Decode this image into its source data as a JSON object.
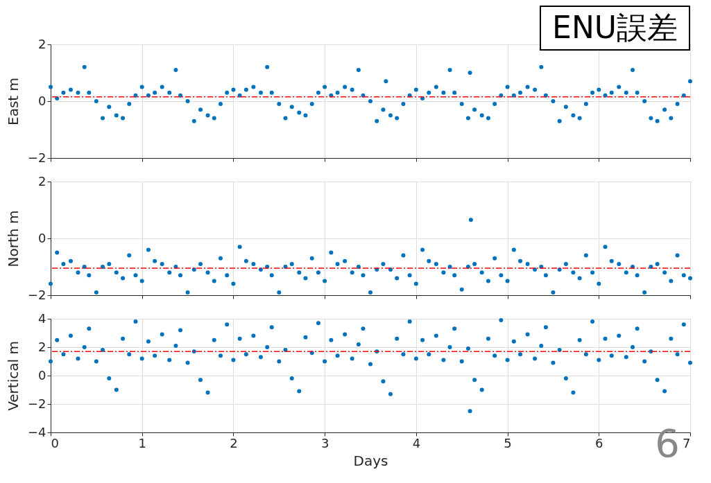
{
  "chart_data": [
    {
      "type": "scatter",
      "title": "ENU誤差",
      "ylabel": "East m",
      "xlim": [
        0,
        7
      ],
      "xticks": [
        0,
        1,
        2,
        3,
        4,
        5,
        6,
        7
      ],
      "ylim": [
        -2,
        2
      ],
      "yticks": [
        -2,
        0,
        2
      ],
      "grid": true,
      "marker": "circle",
      "tick_labels": "y",
      "x": [
        0,
        0.07,
        0.14,
        0.22,
        0.3,
        0.37,
        0.42,
        0.5,
        0.57,
        0.64,
        0.72,
        0.79,
        0.86,
        0.93,
        1,
        1.07,
        1.14,
        1.22,
        1.3,
        1.37,
        1.42,
        1.5,
        1.57,
        1.64,
        1.72,
        1.79,
        1.86,
        1.93,
        2,
        2.07,
        2.14,
        2.22,
        2.3,
        2.37,
        2.42,
        2.5,
        2.57,
        2.64,
        2.72,
        2.79,
        2.86,
        2.93,
        3,
        3.07,
        3.14,
        3.22,
        3.3,
        3.37,
        3.42,
        3.5,
        3.57,
        3.64,
        3.72,
        3.79,
        3.86,
        3.93,
        4,
        4.07,
        4.14,
        4.22,
        4.3,
        4.37,
        4.42,
        4.5,
        4.57,
        4.64,
        4.72,
        4.79,
        4.86,
        4.93,
        5,
        5.07,
        5.14,
        5.22,
        5.3,
        5.37,
        5.42,
        5.5,
        5.57,
        5.64,
        5.72,
        5.79,
        5.86,
        5.93,
        6,
        6.07,
        6.14,
        6.22,
        6.3,
        6.37,
        6.42,
        6.5,
        6.57,
        6.64,
        6.72,
        6.79,
        6.86,
        6.93,
        7,
        3.67,
        4.59
      ],
      "series": [
        {
          "color": "#0072bd",
          "values": [
            0.5,
            0.1,
            0.3,
            0.4,
            0.3,
            1.2,
            0.3,
            0.0,
            -0.6,
            -0.2,
            -0.5,
            -0.6,
            -0.1,
            0.2,
            0.5,
            0.2,
            0.3,
            0.5,
            0.3,
            1.1,
            0.2,
            0.0,
            -0.7,
            -0.3,
            -0.5,
            -0.6,
            -0.1,
            0.3,
            0.4,
            0.2,
            0.4,
            0.5,
            0.3,
            1.2,
            0.3,
            -0.1,
            -0.6,
            -0.2,
            -0.4,
            -0.5,
            -0.1,
            0.3,
            0.5,
            0.2,
            0.3,
            0.5,
            0.4,
            1.1,
            0.2,
            0.0,
            -0.7,
            -0.3,
            -0.5,
            -0.6,
            -0.1,
            0.2,
            0.4,
            0.1,
            0.3,
            0.5,
            0.3,
            1.1,
            0.3,
            -0.1,
            -0.6,
            -0.3,
            -0.5,
            -0.6,
            -0.1,
            0.2,
            0.5,
            0.2,
            0.3,
            0.5,
            0.4,
            1.2,
            0.2,
            0.0,
            -0.7,
            -0.2,
            -0.5,
            -0.6,
            -0.1,
            0.3,
            0.4,
            0.2,
            0.3,
            0.5,
            0.3,
            1.1,
            0.3,
            0.0,
            -0.6,
            -0.7,
            -0.3,
            -0.6,
            -0.1,
            0.2,
            0.7,
            0.7,
            1.0
          ]
        }
      ],
      "ref_lines": [
        {
          "axis": "y",
          "value": 0.15,
          "color": "#ff0000",
          "line_style": "dashed"
        }
      ]
    },
    {
      "type": "scatter",
      "ylabel": "North m",
      "xlim": [
        0,
        7
      ],
      "xticks": [
        0,
        1,
        2,
        3,
        4,
        5,
        6,
        7
      ],
      "ylim": [
        -2,
        2
      ],
      "yticks": [
        -2,
        0,
        2
      ],
      "grid": true,
      "marker": "circle",
      "tick_labels": "y",
      "x": [
        0,
        0.07,
        0.14,
        0.22,
        0.3,
        0.37,
        0.42,
        0.5,
        0.57,
        0.64,
        0.72,
        0.79,
        0.86,
        0.93,
        1,
        1.07,
        1.14,
        1.22,
        1.3,
        1.37,
        1.42,
        1.5,
        1.57,
        1.64,
        1.72,
        1.79,
        1.86,
        1.93,
        2,
        2.07,
        2.14,
        2.22,
        2.3,
        2.37,
        2.42,
        2.5,
        2.57,
        2.64,
        2.72,
        2.79,
        2.86,
        2.93,
        3,
        3.07,
        3.14,
        3.22,
        3.3,
        3.37,
        3.42,
        3.5,
        3.57,
        3.64,
        3.72,
        3.79,
        3.86,
        3.93,
        4,
        4.07,
        4.14,
        4.22,
        4.3,
        4.37,
        4.42,
        4.5,
        4.57,
        4.64,
        4.72,
        4.79,
        4.86,
        4.93,
        5,
        5.07,
        5.14,
        5.22,
        5.3,
        5.37,
        5.42,
        5.5,
        5.57,
        5.64,
        5.72,
        5.79,
        5.86,
        5.93,
        6,
        6.07,
        6.14,
        6.22,
        6.3,
        6.37,
        6.42,
        6.5,
        6.57,
        6.64,
        6.72,
        6.79,
        6.86,
        6.93,
        7,
        4.6
      ],
      "series": [
        {
          "color": "#0072bd",
          "values": [
            -1.6,
            -0.5,
            -0.9,
            -0.8,
            -1.2,
            -1.0,
            -1.3,
            -1.9,
            -1.0,
            -0.9,
            -1.2,
            -1.4,
            -0.6,
            -1.3,
            -1.5,
            -0.4,
            -0.8,
            -0.9,
            -1.2,
            -1.0,
            -1.3,
            -1.9,
            -1.1,
            -0.9,
            -1.2,
            -1.5,
            -0.7,
            -1.3,
            -1.6,
            -0.3,
            -0.8,
            -0.9,
            -1.1,
            -1.0,
            -1.3,
            -1.9,
            -1.0,
            -0.9,
            -1.2,
            -1.4,
            -0.7,
            -1.2,
            -1.5,
            -0.5,
            -0.9,
            -0.8,
            -1.2,
            -1.0,
            -1.3,
            -1.9,
            -1.1,
            -0.9,
            -1.1,
            -1.4,
            -0.6,
            -1.3,
            -1.6,
            -0.4,
            -0.8,
            -0.9,
            -1.2,
            -1.0,
            -1.3,
            -1.8,
            -1.0,
            -0.9,
            -1.2,
            -1.5,
            -0.7,
            -1.3,
            -1.5,
            -0.4,
            -0.8,
            -0.9,
            -1.1,
            -1.0,
            -1.3,
            -1.9,
            -1.1,
            -0.9,
            -1.2,
            -1.4,
            -0.6,
            -1.2,
            -1.6,
            -0.3,
            -0.8,
            -0.9,
            -1.2,
            -1.0,
            -1.3,
            -1.9,
            -1.0,
            -0.9,
            -1.2,
            -1.5,
            -0.6,
            -1.3,
            -1.4,
            0.65
          ]
        }
      ],
      "ref_lines": [
        {
          "axis": "y",
          "value": -1.05,
          "color": "#ff0000",
          "line_style": "dashed"
        }
      ]
    },
    {
      "type": "scatter",
      "ylabel": "Vertical m",
      "xlabel": "Days",
      "xlim": [
        0,
        7
      ],
      "xticks": [
        0,
        1,
        2,
        3,
        4,
        5,
        6,
        7
      ],
      "ylim": [
        -4,
        4
      ],
      "yticks": [
        -4,
        -2,
        0,
        2,
        4
      ],
      "grid": true,
      "marker": "circle",
      "annotations": [
        "6"
      ],
      "x": [
        0,
        0.07,
        0.14,
        0.22,
        0.3,
        0.37,
        0.42,
        0.5,
        0.57,
        0.64,
        0.72,
        0.79,
        0.86,
        0.93,
        1,
        1.07,
        1.14,
        1.22,
        1.3,
        1.37,
        1.42,
        1.5,
        1.57,
        1.64,
        1.72,
        1.79,
        1.86,
        1.93,
        2,
        2.07,
        2.14,
        2.22,
        2.3,
        2.37,
        2.42,
        2.5,
        2.57,
        2.64,
        2.72,
        2.79,
        2.86,
        2.93,
        3,
        3.07,
        3.14,
        3.22,
        3.3,
        3.37,
        3.42,
        3.5,
        3.57,
        3.64,
        3.72,
        3.79,
        3.86,
        3.93,
        4,
        4.07,
        4.14,
        4.22,
        4.3,
        4.37,
        4.42,
        4.5,
        4.57,
        4.64,
        4.72,
        4.79,
        4.86,
        4.93,
        5,
        5.07,
        5.14,
        5.22,
        5.3,
        5.37,
        5.42,
        5.5,
        5.57,
        5.64,
        5.72,
        5.79,
        5.86,
        5.93,
        6,
        6.07,
        6.14,
        6.22,
        6.3,
        6.37,
        6.42,
        6.5,
        6.57,
        6.64,
        6.72,
        6.79,
        6.86,
        6.93,
        7,
        4.59
      ],
      "series": [
        {
          "color": "#0072bd",
          "values": [
            1.0,
            2.5,
            1.5,
            2.8,
            1.2,
            2.0,
            3.3,
            1.0,
            1.8,
            -0.2,
            -1.0,
            2.6,
            1.5,
            3.8,
            1.2,
            2.4,
            1.4,
            2.9,
            1.1,
            2.1,
            3.2,
            0.9,
            1.7,
            -0.3,
            -1.2,
            2.5,
            1.4,
            3.6,
            1.1,
            2.6,
            1.5,
            2.8,
            1.3,
            2.0,
            3.4,
            1.0,
            1.8,
            -0.2,
            -1.1,
            2.7,
            1.6,
            3.7,
            1.0,
            2.5,
            1.4,
            2.9,
            1.2,
            2.2,
            3.3,
            0.8,
            1.7,
            -0.4,
            -1.3,
            2.6,
            1.5,
            3.8,
            1.2,
            2.5,
            1.5,
            2.8,
            1.1,
            2.0,
            3.3,
            1.0,
            1.9,
            -0.3,
            -1.0,
            2.6,
            1.4,
            3.9,
            1.1,
            2.4,
            1.5,
            2.9,
            1.2,
            2.1,
            3.4,
            0.9,
            1.8,
            -0.2,
            -1.2,
            2.5,
            1.5,
            3.8,
            1.1,
            2.6,
            1.4,
            2.8,
            1.3,
            2.0,
            3.3,
            1.0,
            1.7,
            -0.3,
            -1.1,
            2.6,
            1.5,
            3.6,
            0.9,
            -2.5
          ]
        }
      ],
      "ref_lines": [
        {
          "axis": "y",
          "value": 1.7,
          "color": "#ff0000",
          "line_style": "dashed"
        }
      ]
    }
  ]
}
